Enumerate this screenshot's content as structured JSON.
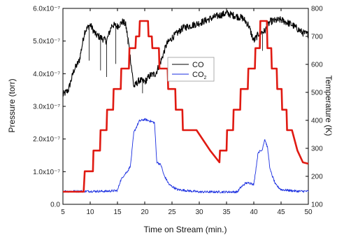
{
  "chart_data": {
    "type": "line",
    "title": "",
    "xlabel": "Time on Stream (min.)",
    "ylabel_left": "Pressure (torr)",
    "ylabel_right": "Temperature (K)",
    "xlim": [
      5,
      50
    ],
    "ylim_left": [
      0,
      6e-07
    ],
    "ylim_right": [
      100,
      800
    ],
    "x_ticks": [
      "5",
      "10",
      "15",
      "20",
      "25",
      "30",
      "35",
      "40",
      "45",
      "50"
    ],
    "x_tick_values": [
      5,
      10,
      15,
      20,
      25,
      30,
      35,
      40,
      45,
      50
    ],
    "y_left_ticks": [
      {
        "value": 0,
        "label": "0.0"
      },
      {
        "value": 1e-07,
        "label": "1.0x10⁻⁷"
      },
      {
        "value": 2e-07,
        "label": "2.0x10⁻⁷"
      },
      {
        "value": 3e-07,
        "label": "3.0x10⁻⁷"
      },
      {
        "value": 4e-07,
        "label": "4.0x10⁻⁷"
      },
      {
        "value": 5e-07,
        "label": "5.0x10⁻⁷"
      },
      {
        "value": 6e-07,
        "label": "6.0x10⁻⁷"
      }
    ],
    "y_right_ticks": [
      {
        "value": 100,
        "label": "100"
      },
      {
        "value": 200,
        "label": "200"
      },
      {
        "value": 300,
        "label": "300"
      },
      {
        "value": 400,
        "label": "400"
      },
      {
        "value": 500,
        "label": "500"
      },
      {
        "value": 600,
        "label": "600"
      },
      {
        "value": 700,
        "label": "700"
      },
      {
        "value": 800,
        "label": "800"
      }
    ],
    "legend": {
      "placement": "center",
      "entries": [
        {
          "label": "CO",
          "label_sub": "",
          "color": "#000000"
        },
        {
          "label": "CO",
          "label_sub": "2",
          "color": "#1a2ee0"
        }
      ]
    },
    "series": [
      {
        "name": "CO",
        "axis": "left",
        "color": "#000000",
        "noisy": true,
        "points": [
          [
            5.0,
            3.35e-07
          ],
          [
            6.0,
            3.5e-07
          ],
          [
            7.0,
            4.1e-07
          ],
          [
            8.0,
            4.4e-07
          ],
          [
            9.0,
            5.3e-07
          ],
          [
            10.0,
            5.5e-07
          ],
          [
            11.0,
            5.2e-07
          ],
          [
            12.0,
            5.1e-07
          ],
          [
            13.0,
            5e-07
          ],
          [
            14.0,
            5.5e-07
          ],
          [
            15.0,
            5.45e-07
          ],
          [
            16.0,
            5.6e-07
          ],
          [
            16.5,
            5.5e-07
          ],
          [
            17.0,
            5e-07
          ],
          [
            18.0,
            3.6e-07
          ],
          [
            19.0,
            3.8e-07
          ],
          [
            20.0,
            3.75e-07
          ],
          [
            21.0,
            3.95e-07
          ],
          [
            22.0,
            4e-07
          ],
          [
            23.0,
            4.4e-07
          ],
          [
            24.0,
            4.9e-07
          ],
          [
            25.0,
            5.1e-07
          ],
          [
            27.0,
            5.4e-07
          ],
          [
            30.0,
            5.55e-07
          ],
          [
            33.0,
            5.75e-07
          ],
          [
            35.0,
            5.85e-07
          ],
          [
            37.0,
            5.75e-07
          ],
          [
            38.0,
            5.7e-07
          ],
          [
            39.0,
            5.5e-07
          ],
          [
            40.0,
            5e-07
          ],
          [
            41.0,
            5.25e-07
          ],
          [
            42.0,
            5.3e-07
          ],
          [
            43.0,
            5.6e-07
          ],
          [
            45.0,
            5.65e-07
          ],
          [
            47.0,
            5.5e-07
          ],
          [
            49.0,
            5.25e-07
          ],
          [
            50.0,
            5.2e-07
          ]
        ]
      },
      {
        "name": "CO₂",
        "axis": "left",
        "color": "#1a2ee0",
        "noisy": true,
        "points": [
          [
            5.0,
            4e-08
          ],
          [
            9.0,
            4e-08
          ],
          [
            13.0,
            4e-08
          ],
          [
            15.0,
            4.2e-08
          ],
          [
            15.5,
            7e-08
          ],
          [
            16.0,
            8.5e-08
          ],
          [
            17.0,
            1.05e-07
          ],
          [
            17.4,
            1.2e-07
          ],
          [
            18.0,
            2.2e-07
          ],
          [
            19.0,
            2.55e-07
          ],
          [
            20.0,
            2.6e-07
          ],
          [
            21.0,
            2.55e-07
          ],
          [
            21.8,
            2.5e-07
          ],
          [
            22.2,
            1.3e-07
          ],
          [
            23.0,
            1.2e-07
          ],
          [
            23.5,
            9e-08
          ],
          [
            24.5,
            6e-08
          ],
          [
            26.0,
            4.5e-08
          ],
          [
            30.0,
            3.8e-08
          ],
          [
            37.0,
            3.8e-08
          ],
          [
            37.5,
            5e-08
          ],
          [
            38.5,
            6.5e-08
          ],
          [
            39.5,
            6.5e-08
          ],
          [
            40.0,
            6e-08
          ],
          [
            40.8,
            1.6e-07
          ],
          [
            41.5,
            1.65e-07
          ],
          [
            42.0,
            2e-07
          ],
          [
            42.5,
            1.75e-07
          ],
          [
            43.0,
            1.05e-07
          ],
          [
            44.0,
            6e-08
          ],
          [
            45.0,
            4.5e-08
          ],
          [
            48.0,
            4e-08
          ],
          [
            50.0,
            4e-08
          ]
        ]
      },
      {
        "name": "",
        "axis": "right",
        "color": "#e01a12",
        "noisy": false,
        "points": [
          [
            5.0,
            145
          ],
          [
            8.8,
            145
          ],
          [
            9.0,
            218
          ],
          [
            10.5,
            218
          ],
          [
            10.6,
            292
          ],
          [
            11.8,
            292
          ],
          [
            11.9,
            365
          ],
          [
            13.0,
            365
          ],
          [
            13.1,
            438
          ],
          [
            14.2,
            438
          ],
          [
            14.3,
            512
          ],
          [
            15.6,
            512
          ],
          [
            15.7,
            585
          ],
          [
            17.1,
            585
          ],
          [
            17.2,
            658
          ],
          [
            18.3,
            658
          ],
          [
            18.4,
            700
          ],
          [
            19.0,
            700
          ],
          [
            19.1,
            755
          ],
          [
            20.6,
            755
          ],
          [
            20.7,
            700
          ],
          [
            21.3,
            700
          ],
          [
            21.4,
            658
          ],
          [
            22.6,
            658
          ],
          [
            22.7,
            585
          ],
          [
            24.2,
            585
          ],
          [
            24.3,
            512
          ],
          [
            25.6,
            512
          ],
          [
            25.7,
            438
          ],
          [
            26.9,
            438
          ],
          [
            27.0,
            365
          ],
          [
            29.5,
            365
          ],
          [
            32.0,
            292
          ],
          [
            33.7,
            250
          ],
          [
            33.8,
            292
          ],
          [
            35.0,
            292
          ],
          [
            35.1,
            365
          ],
          [
            36.2,
            365
          ],
          [
            36.3,
            438
          ],
          [
            37.5,
            438
          ],
          [
            37.6,
            512
          ],
          [
            38.9,
            512
          ],
          [
            39.0,
            585
          ],
          [
            40.2,
            585
          ],
          [
            40.3,
            658
          ],
          [
            41.1,
            658
          ],
          [
            41.2,
            755
          ],
          [
            42.4,
            755
          ],
          [
            42.5,
            658
          ],
          [
            43.2,
            658
          ],
          [
            43.3,
            585
          ],
          [
            44.2,
            585
          ],
          [
            44.3,
            512
          ],
          [
            45.1,
            512
          ],
          [
            45.2,
            438
          ],
          [
            46.0,
            438
          ],
          [
            46.1,
            365
          ],
          [
            47.0,
            365
          ],
          [
            48.0,
            292
          ],
          [
            49.0,
            250
          ],
          [
            50.0,
            245
          ]
        ]
      }
    ],
    "grid": false
  }
}
